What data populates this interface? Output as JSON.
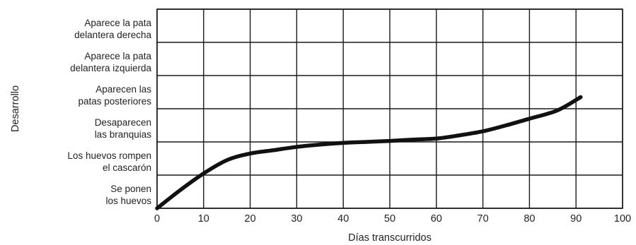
{
  "chart_data": {
    "type": "line",
    "title": "",
    "xlabel": "Días transcurridos",
    "ylabel": "Desarrollo",
    "xlim": [
      0,
      100
    ],
    "x_ticks": [
      0,
      10,
      20,
      30,
      40,
      50,
      60,
      70,
      80,
      90,
      100
    ],
    "y_categories": [
      [
        "Se ponen",
        "los huevos"
      ],
      [
        "Los huevos rompen",
        "el cascarón"
      ],
      [
        "Desaparecen",
        "las branquias"
      ],
      [
        "Aparecen las",
        "patas posteriores"
      ],
      [
        "Aparece la pata",
        "delantera izquierda"
      ],
      [
        "Aparece la pata",
        "delantera derecha"
      ]
    ],
    "ylim": [
      0,
      6
    ],
    "grid": true,
    "series": [
      {
        "x": [
          0,
          5,
          10,
          15,
          20,
          25,
          30,
          35,
          40,
          45,
          50,
          55,
          60,
          65,
          70,
          75,
          80,
          86,
          91
        ],
        "y": [
          0,
          0.55,
          1.05,
          1.45,
          1.65,
          1.75,
          1.85,
          1.92,
          1.97,
          2.0,
          2.03,
          2.07,
          2.1,
          2.2,
          2.32,
          2.5,
          2.7,
          2.95,
          3.35
        ]
      }
    ]
  }
}
